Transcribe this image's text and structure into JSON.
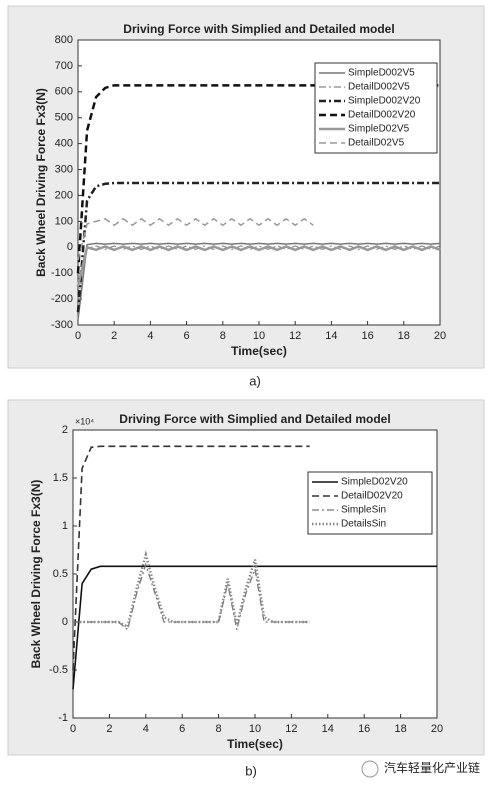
{
  "chart_data": [
    {
      "type": "line",
      "title": "Driving Force with Simplied and Detailed model",
      "x_label": "Time(sec)",
      "y_label": "Back Wheel Driving Force Fx3(N)",
      "caption": "a)",
      "x": [
        0,
        0.5,
        1,
        1.5,
        2,
        2.5,
        3,
        3.5,
        4,
        4.5,
        5,
        5.5,
        6,
        6.5,
        7,
        7.5,
        8,
        8.5,
        9,
        9.5,
        10,
        10.5,
        11,
        11.5,
        12,
        12.5,
        13,
        13.5,
        14,
        14.5,
        15,
        15.5,
        16,
        16.5,
        17,
        17.5,
        18,
        18.5,
        19,
        19.5,
        20
      ],
      "xlim": [
        0,
        20
      ],
      "xticks": [
        0,
        2,
        4,
        6,
        8,
        10,
        12,
        14,
        16,
        18,
        20
      ],
      "ylim": [
        -300,
        800
      ],
      "yticks": [
        -300,
        -200,
        -100,
        0,
        100,
        200,
        300,
        400,
        500,
        600,
        700,
        800
      ],
      "legend": "upper right",
      "series": [
        {
          "name": "SimpleD002V5",
          "color": "#777777",
          "line_style": "solid",
          "width": 1.5,
          "values": [
            -280,
            10,
            15,
            12,
            15,
            12,
            15,
            12,
            15,
            12,
            15,
            12,
            15,
            12,
            15,
            12,
            15,
            12,
            15,
            12,
            15,
            12,
            15,
            12,
            15,
            12,
            15,
            12,
            15,
            12,
            15,
            12,
            15,
            12,
            15,
            12,
            15,
            12,
            15,
            12,
            15
          ]
        },
        {
          "name": "DetailD002V5",
          "color": "#888888",
          "line_style": "dashdot",
          "width": 1.2,
          "values": [
            -200,
            -5,
            5,
            -8,
            5,
            -8,
            5,
            -8,
            5,
            -8,
            5,
            -8,
            5,
            -8,
            5,
            -8,
            5,
            -8,
            5,
            -8,
            5,
            -8,
            5,
            -8,
            5,
            -8,
            5,
            -8,
            5,
            -8,
            5,
            -8,
            5,
            -8,
            5,
            -8,
            5,
            -8,
            5,
            -8,
            5
          ]
        },
        {
          "name": "SimpleD002V20",
          "color": "#222222",
          "line_style": "dashdot",
          "width": 2.5,
          "values": [
            -250,
            180,
            235,
            245,
            248,
            248,
            248,
            248,
            248,
            248,
            248,
            248,
            248,
            248,
            248,
            248,
            248,
            248,
            248,
            248,
            248,
            248,
            248,
            248,
            248,
            248,
            248,
            248,
            248,
            248,
            248,
            248,
            248,
            248,
            248,
            248,
            248,
            248,
            248,
            248,
            248
          ]
        },
        {
          "name": "DetailD002V20",
          "color": "#111111",
          "line_style": "dashed",
          "width": 2.5,
          "values": [
            -100,
            450,
            580,
            615,
            625,
            625,
            625,
            625,
            625,
            625,
            625,
            625,
            625,
            625,
            625,
            625,
            625,
            625,
            625,
            625,
            625,
            625,
            625,
            625,
            625,
            625,
            625,
            625,
            625,
            625,
            625,
            625,
            625,
            625,
            625,
            625,
            625,
            625,
            625,
            625,
            625
          ]
        },
        {
          "name": "SimpleD02V5",
          "color": "#999999",
          "line_style": "solid",
          "width": 2.5,
          "values": [
            -150,
            0,
            -10,
            3,
            -10,
            3,
            -10,
            3,
            -10,
            3,
            -10,
            3,
            -10,
            3,
            -10,
            3,
            -10,
            3,
            -10,
            3,
            -10,
            3,
            -10,
            3,
            -10,
            3,
            -10,
            3,
            -10,
            3,
            -10,
            3,
            -10,
            3,
            -10,
            3,
            -10,
            3,
            -10,
            3,
            -10
          ]
        },
        {
          "name": "DetailD02V5",
          "color": "#999999",
          "line_style": "dashed",
          "width": 1.5,
          "values": [
            -50,
            90,
            100,
            110,
            85,
            110,
            85,
            110,
            85,
            110,
            85,
            110,
            85,
            110,
            85,
            110,
            85,
            110,
            85,
            110,
            85,
            110,
            85,
            110,
            85,
            110,
            85,
            null,
            null,
            null,
            null,
            null,
            null,
            null,
            null,
            null,
            null,
            null,
            null,
            null,
            null
          ]
        }
      ]
    },
    {
      "type": "line",
      "title": "Driving Force with Simplied and Detailed model",
      "x_label": "Time(sec)",
      "y_label": "Back Wheel Driving Force Fx3(N)",
      "caption": "b)",
      "y_multiplier": "×10⁴",
      "x": [
        0,
        0.5,
        1,
        1.5,
        2,
        2.5,
        3,
        3.5,
        4,
        4.5,
        5,
        5.5,
        6,
        6.5,
        7,
        7.5,
        8,
        8.5,
        9,
        9.5,
        10,
        10.5,
        11,
        11.5,
        12,
        12.5,
        13,
        13.5,
        14,
        14.5,
        15,
        15.5,
        16,
        16.5,
        17,
        17.5,
        18,
        18.5,
        19,
        19.5,
        20
      ],
      "xlim": [
        0,
        20
      ],
      "xticks": [
        0,
        2,
        4,
        6,
        8,
        10,
        12,
        14,
        16,
        18,
        20
      ],
      "ylim": [
        -1,
        2
      ],
      "yticks": [
        -1,
        -0.5,
        0,
        0.5,
        1,
        1.5,
        2
      ],
      "legend": "upper right",
      "series": [
        {
          "name": "SimpleD02V20",
          "color": "#111111",
          "line_style": "solid",
          "width": 1.6,
          "values": [
            -0.7,
            0.4,
            0.55,
            0.58,
            0.58,
            0.58,
            0.58,
            0.58,
            0.58,
            0.58,
            0.58,
            0.58,
            0.58,
            0.58,
            0.58,
            0.58,
            0.58,
            0.58,
            0.58,
            0.58,
            0.58,
            0.58,
            0.58,
            0.58,
            0.58,
            0.58,
            0.58,
            0.58,
            0.58,
            0.58,
            0.58,
            0.58,
            0.58,
            0.58,
            0.58,
            0.58,
            0.58,
            0.58,
            0.58,
            0.58,
            0.58
          ]
        },
        {
          "name": "DetailD02V20",
          "color": "#333333",
          "line_style": "dashed",
          "width": 1.6,
          "values": [
            -0.5,
            1.6,
            1.82,
            1.83,
            1.83,
            1.83,
            1.83,
            1.83,
            1.83,
            1.83,
            1.83,
            1.83,
            1.83,
            1.83,
            1.83,
            1.83,
            1.83,
            1.83,
            1.83,
            1.83,
            1.83,
            1.83,
            1.83,
            1.83,
            1.83,
            1.83,
            1.83,
            null,
            null,
            null,
            null,
            null,
            null,
            null,
            null,
            null,
            null,
            null,
            null,
            null,
            null
          ]
        },
        {
          "name": "SimpleSin",
          "color": "#777777",
          "line_style": "dashdot",
          "width": 1.3,
          "values": [
            0,
            0,
            0,
            0,
            0,
            0,
            -0.08,
            0.3,
            0.6,
            0.3,
            0,
            0,
            0,
            0,
            0,
            0,
            0,
            0.4,
            -0.08,
            0.3,
            0.55,
            0,
            0,
            0,
            0,
            0,
            0,
            null,
            null,
            null,
            null,
            null,
            null,
            null,
            null,
            null,
            null,
            null,
            null,
            null,
            null
          ]
        },
        {
          "name": "DetailsSin",
          "color": "#888888",
          "line_style": "dotted",
          "width": 2.5,
          "values": [
            0,
            0,
            0,
            0,
            0,
            0,
            -0.05,
            0.35,
            0.7,
            0.35,
            0.05,
            0,
            0,
            0,
            0,
            0,
            0,
            0.45,
            -0.03,
            0.35,
            0.65,
            0.05,
            0,
            0,
            0,
            0,
            0,
            null,
            null,
            null,
            null,
            null,
            null,
            null,
            null,
            null,
            null,
            null,
            null,
            null,
            null
          ]
        }
      ]
    }
  ],
  "watermark": "汽车轻量化产业链"
}
